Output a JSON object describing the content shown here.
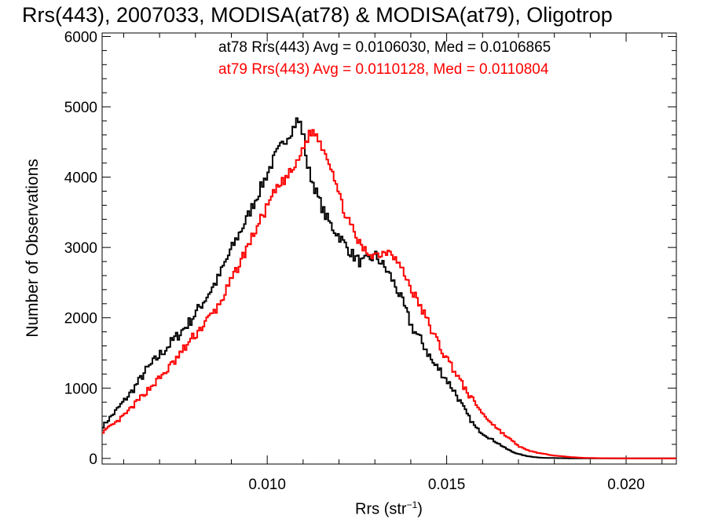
{
  "chart_data": {
    "type": "line",
    "title": "Rrs(443), 2007033, MODISA(at78) & MODISA(at79), Oligotrop",
    "xlabel": "Rrs (str",
    "xlabel_sup": "−1",
    "xlabel_close": ")",
    "ylabel": "Number of Observations",
    "xlim": [
      0.0054,
      0.0214
    ],
    "ylim": [
      -80,
      6050
    ],
    "x_ticks": [
      "0.010",
      "0.015",
      "0.020"
    ],
    "y_ticks": [
      "0",
      "1000",
      "2000",
      "3000",
      "4000",
      "5000",
      "6000"
    ],
    "series": [
      {
        "name": "at78",
        "color": "#000000",
        "annotation": "at78 Rrs(443) Avg = 0.0106030, Med = 0.0106865",
        "x": [
          0.0054,
          0.0058,
          0.0062,
          0.0066,
          0.007,
          0.0074,
          0.0078,
          0.0082,
          0.0086,
          0.009,
          0.0094,
          0.0098,
          0.0102,
          0.0105,
          0.0107,
          0.0108,
          0.0109,
          0.011,
          0.0111,
          0.0112,
          0.0114,
          0.0116,
          0.0118,
          0.012,
          0.0122,
          0.0124,
          0.0126,
          0.0128,
          0.013,
          0.0132,
          0.0134,
          0.0136,
          0.0138,
          0.014,
          0.0142,
          0.0144,
          0.0146,
          0.0148,
          0.015,
          0.0152,
          0.0154,
          0.0156,
          0.0158,
          0.016,
          0.0162,
          0.0164,
          0.0166,
          0.0168,
          0.017,
          0.0172,
          0.0174,
          0.0176,
          0.018,
          0.0184,
          0.0188,
          0.0192,
          0.02,
          0.0214
        ],
        "y": [
          460,
          700,
          950,
          1250,
          1480,
          1700,
          1930,
          2230,
          2550,
          3000,
          3400,
          3850,
          4300,
          4550,
          4700,
          4800,
          4760,
          4550,
          4150,
          4000,
          3700,
          3450,
          3280,
          3150,
          3000,
          2870,
          2780,
          2830,
          2880,
          2750,
          2600,
          2400,
          2150,
          1880,
          1720,
          1560,
          1350,
          1250,
          1100,
          950,
          760,
          580,
          430,
          350,
          280,
          220,
          150,
          95,
          60,
          35,
          20,
          10,
          5,
          2,
          1,
          0,
          0,
          0
        ],
        "step": 5e-05,
        "jitter": 80,
        "seed": 7
      },
      {
        "name": "at79",
        "color": "#ff0000",
        "annotation": "at79 Rrs(443) Avg = 0.0110128, Med = 0.0110804",
        "x": [
          0.0054,
          0.0058,
          0.0062,
          0.0066,
          0.007,
          0.0074,
          0.0078,
          0.0082,
          0.0086,
          0.009,
          0.0094,
          0.0098,
          0.0102,
          0.0106,
          0.0108,
          0.011,
          0.0111,
          0.0112,
          0.0113,
          0.0114,
          0.0116,
          0.0118,
          0.012,
          0.0122,
          0.0124,
          0.0126,
          0.0128,
          0.013,
          0.0132,
          0.0134,
          0.0136,
          0.0138,
          0.014,
          0.0142,
          0.0144,
          0.0146,
          0.0148,
          0.015,
          0.0152,
          0.0154,
          0.0156,
          0.0158,
          0.016,
          0.0162,
          0.0164,
          0.0166,
          0.0168,
          0.017,
          0.0172,
          0.0176,
          0.018,
          0.0184,
          0.0188,
          0.0192,
          0.02,
          0.0214
        ],
        "y": [
          380,
          520,
          720,
          950,
          1150,
          1380,
          1650,
          1900,
          2150,
          2550,
          2980,
          3400,
          3800,
          4050,
          4180,
          4450,
          4550,
          4650,
          4620,
          4550,
          4350,
          4100,
          3700,
          3420,
          3200,
          3000,
          2920,
          2900,
          2920,
          2980,
          2800,
          2620,
          2400,
          2200,
          2000,
          1780,
          1580,
          1400,
          1250,
          1060,
          900,
          770,
          620,
          520,
          420,
          330,
          250,
          170,
          120,
          70,
          40,
          20,
          8,
          4,
          1,
          0
        ],
        "step": 5e-05,
        "jitter": 70,
        "seed": 13
      }
    ]
  }
}
